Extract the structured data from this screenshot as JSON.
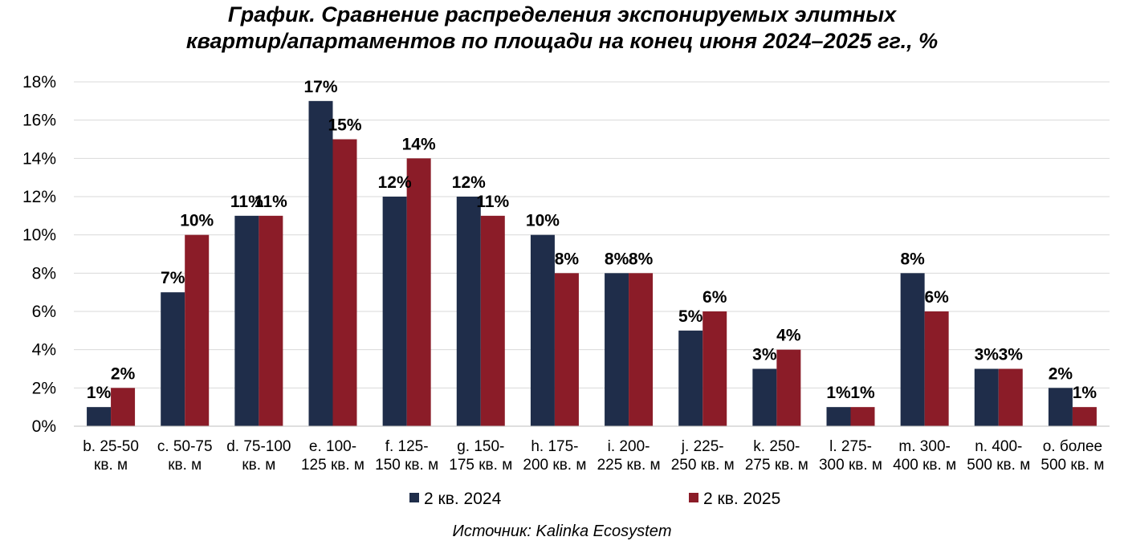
{
  "chart_data": {
    "type": "bar",
    "title_lines": [
      "График. Сравнение распределения экспонируемых элитных",
      "квартир/апартаментов по площади на конец июня 2024–2025 гг., %"
    ],
    "categories": [
      [
        "b. 25-50",
        "кв. м"
      ],
      [
        "c. 50-75",
        "кв. м"
      ],
      [
        "d. 75-100",
        "кв. м"
      ],
      [
        "e. 100-",
        "125 кв. м"
      ],
      [
        "f. 125-",
        "150 кв. м"
      ],
      [
        "g. 150-",
        "175 кв. м"
      ],
      [
        "h. 175-",
        "200 кв. м"
      ],
      [
        "i. 200-",
        "225 кв. м"
      ],
      [
        "j. 225-",
        "250 кв. м"
      ],
      [
        "k. 250-",
        "275 кв. м"
      ],
      [
        "l. 275-",
        "300 кв. м"
      ],
      [
        "m. 300-",
        "400 кв. м"
      ],
      [
        "n. 400-",
        "500 кв. м"
      ],
      [
        "o. более",
        "500 кв. м"
      ]
    ],
    "series": [
      {
        "name": "2 кв. 2024",
        "color": "#1f2d4a",
        "values": [
          1,
          7,
          11,
          17,
          12,
          12,
          10,
          8,
          5,
          3,
          1,
          8,
          3,
          2
        ]
      },
      {
        "name": "2 кв. 2025",
        "color": "#8b1c28",
        "values": [
          2,
          10,
          11,
          15,
          14,
          11,
          8,
          8,
          6,
          4,
          1,
          6,
          3,
          1
        ]
      }
    ],
    "ylim": [
      0,
      18
    ],
    "yticks": [
      0,
      2,
      4,
      6,
      8,
      10,
      12,
      14,
      16,
      18
    ],
    "value_suffix": "%",
    "grid": true,
    "legend_position": "bottom"
  },
  "source": "Источник: Kalinka Ecosystem"
}
